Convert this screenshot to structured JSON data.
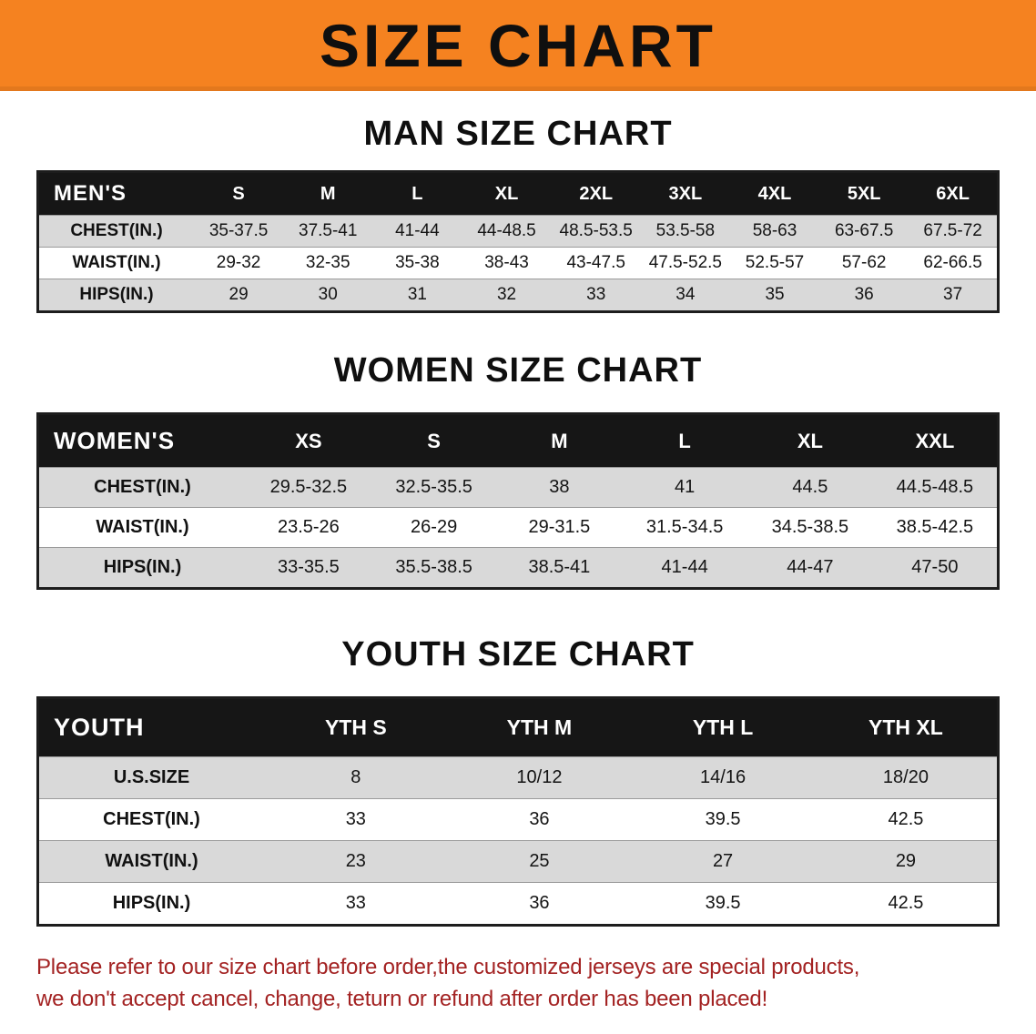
{
  "banner": {
    "title": "SIZE CHART"
  },
  "men": {
    "heading": "MAN SIZE CHART",
    "header": [
      "MEN'S",
      "S",
      "M",
      "L",
      "XL",
      "2XL",
      "3XL",
      "4XL",
      "5XL",
      "6XL"
    ],
    "rows": [
      {
        "label": "CHEST(IN.)",
        "values": [
          "35-37.5",
          "37.5-41",
          "41-44",
          "44-48.5",
          "48.5-53.5",
          "53.5-58",
          "58-63",
          "63-67.5",
          "67.5-72"
        ]
      },
      {
        "label": "WAIST(IN.)",
        "values": [
          "29-32",
          "32-35",
          "35-38",
          "38-43",
          "43-47.5",
          "47.5-52.5",
          "52.5-57",
          "57-62",
          "62-66.5"
        ]
      },
      {
        "label": "HIPS(IN.)",
        "values": [
          "29",
          "30",
          "31",
          "32",
          "33",
          "34",
          "35",
          "36",
          "37"
        ]
      }
    ]
  },
  "women": {
    "heading": "WOMEN SIZE CHART",
    "header": [
      "WOMEN'S",
      "XS",
      "S",
      "M",
      "L",
      "XL",
      "XXL"
    ],
    "rows": [
      {
        "label": "CHEST(IN.)",
        "values": [
          "29.5-32.5",
          "32.5-35.5",
          "38",
          "41",
          "44.5",
          "44.5-48.5"
        ]
      },
      {
        "label": "WAIST(IN.)",
        "values": [
          "23.5-26",
          "26-29",
          "29-31.5",
          "31.5-34.5",
          "34.5-38.5",
          "38.5-42.5"
        ]
      },
      {
        "label": "HIPS(IN.)",
        "values": [
          "33-35.5",
          "35.5-38.5",
          "38.5-41",
          "41-44",
          "44-47",
          "47-50"
        ]
      }
    ]
  },
  "youth": {
    "heading": "YOUTH SIZE CHART",
    "header": [
      "YOUTH",
      "YTH S",
      "YTH M",
      "YTH L",
      "YTH XL"
    ],
    "rows": [
      {
        "label": "U.S.SIZE",
        "values": [
          "8",
          "10/12",
          "14/16",
          "18/20"
        ]
      },
      {
        "label": "CHEST(IN.)",
        "values": [
          "33",
          "36",
          "39.5",
          "42.5"
        ]
      },
      {
        "label": "WAIST(IN.)",
        "values": [
          "23",
          "25",
          "27",
          "29"
        ]
      },
      {
        "label": "HIPS(IN.)",
        "values": [
          "33",
          "36",
          "39.5",
          "42.5"
        ]
      }
    ]
  },
  "disclaimer": {
    "line1": "Please refer to our size chart before order,the customized jerseys are special products,",
    "line2": "we don't accept cancel, change, teturn or refund after order has been placed!"
  },
  "colors": {
    "banner_orange": "#F58220",
    "header_black": "#161616",
    "row_gray": "#D9D9D9",
    "disclaimer_red": "#A32222"
  }
}
